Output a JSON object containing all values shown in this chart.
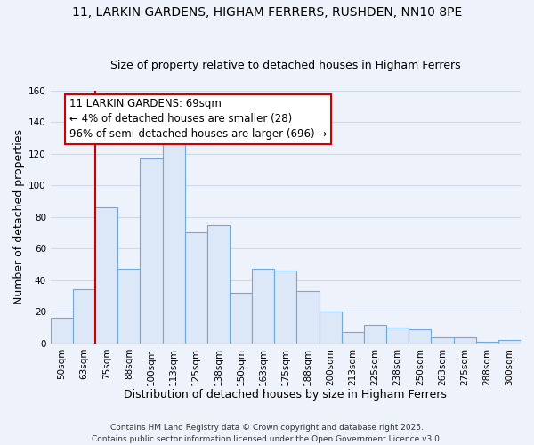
{
  "title_line1": "11, LARKIN GARDENS, HIGHAM FERRERS, RUSHDEN, NN10 8PE",
  "title_line2": "Size of property relative to detached houses in Higham Ferrers",
  "bar_labels": [
    "50sqm",
    "63sqm",
    "75sqm",
    "88sqm",
    "100sqm",
    "113sqm",
    "125sqm",
    "138sqm",
    "150sqm",
    "163sqm",
    "175sqm",
    "188sqm",
    "200sqm",
    "213sqm",
    "225sqm",
    "238sqm",
    "250sqm",
    "263sqm",
    "275sqm",
    "288sqm",
    "300sqm"
  ],
  "bar_values": [
    16,
    34,
    86,
    47,
    117,
    128,
    70,
    75,
    32,
    47,
    46,
    33,
    20,
    7,
    12,
    10,
    9,
    4,
    4,
    1,
    2
  ],
  "bar_color": "#dce8f8",
  "bar_edge_color": "#6fa8dc",
  "xlabel": "Distribution of detached houses by size in Higham Ferrers",
  "ylabel": "Number of detached properties",
  "ylim": [
    0,
    160
  ],
  "yticks": [
    0,
    20,
    40,
    60,
    80,
    100,
    120,
    140,
    160
  ],
  "vline_color": "#cc0000",
  "annotation_title": "11 LARKIN GARDENS: 69sqm",
  "annotation_line2": "← 4% of detached houses are smaller (28)",
  "annotation_line3": "96% of semi-detached houses are larger (696) →",
  "footer_line1": "Contains HM Land Registry data © Crown copyright and database right 2025.",
  "footer_line2": "Contains public sector information licensed under the Open Government Licence v3.0.",
  "background_color": "#eef2fb",
  "grid_color": "#d0d8e8",
  "title_fontsize": 10,
  "subtitle_fontsize": 9,
  "axis_label_fontsize": 9,
  "tick_fontsize": 7.5,
  "annotation_fontsize": 8.5,
  "footer_fontsize": 6.5
}
